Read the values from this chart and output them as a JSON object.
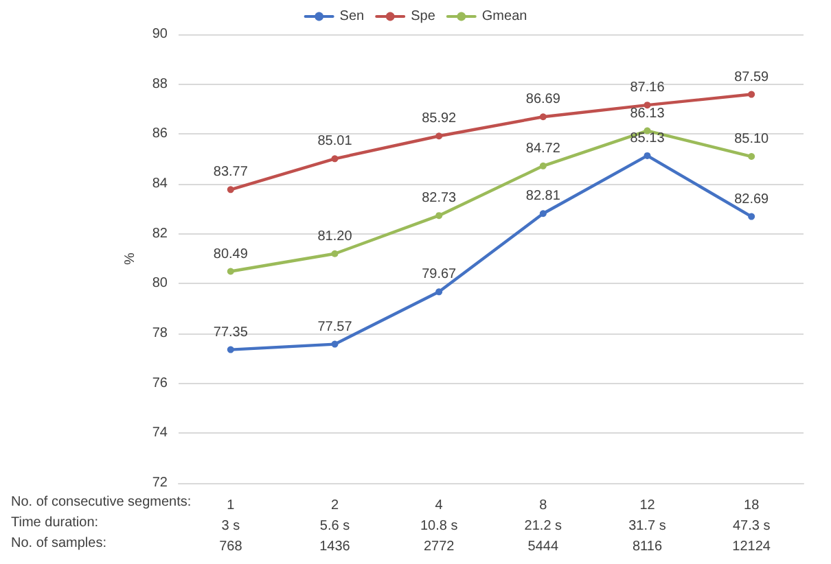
{
  "chart_data": {
    "type": "line",
    "ylabel": "%",
    "categories": [
      "1\n3 s\n768",
      "2\n5.6 s\n1436",
      "4\n10.8 s\n2772",
      "8\n21.2 s\n5444",
      "12\n31.7 s\n8116",
      "18\n47.3 s\n12124"
    ],
    "series": [
      {
        "name": "Sen",
        "color": "#4472c4",
        "values": [
          77.35,
          77.57,
          79.67,
          82.81,
          85.13,
          82.69
        ]
      },
      {
        "name": "Spe",
        "color": "#c0504d",
        "values": [
          83.77,
          85.01,
          85.92,
          86.69,
          87.16,
          87.59
        ]
      },
      {
        "name": "Gmean",
        "color": "#9bbb59",
        "values": [
          80.49,
          81.2,
          82.73,
          84.72,
          86.13,
          85.1
        ],
        "value_labels": [
          "80.49",
          "81.20",
          "82.73",
          "84.72",
          "86.13",
          "85.10"
        ]
      }
    ],
    "ylim": [
      72,
      90
    ],
    "yticks": [
      72,
      74,
      76,
      78,
      80,
      82,
      84,
      86,
      88,
      90
    ],
    "annotations": [
      "No. of consecutive segments:",
      "Time duration:",
      "No. of samples:"
    ],
    "grid": "y",
    "legend": "top",
    "marker": "circle",
    "line_style": "solid",
    "data_labels": true
  }
}
